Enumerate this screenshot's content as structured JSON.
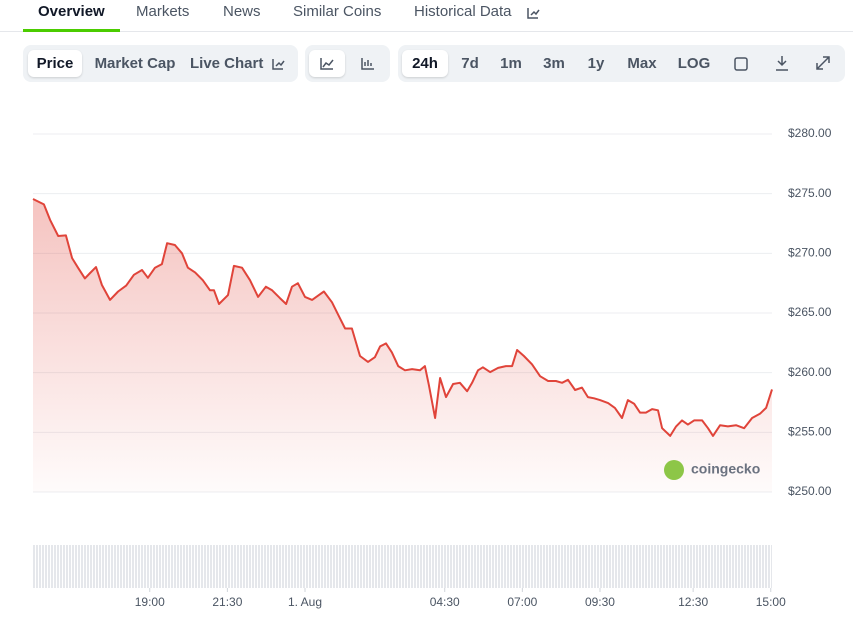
{
  "tabs": [
    "Overview",
    "Markets",
    "News",
    "Similar Coins",
    "Historical Data"
  ],
  "toolbar": {
    "views": [
      "Price",
      "Market Cap",
      "Live Chart"
    ],
    "ranges": [
      "24h",
      "7d",
      "1m",
      "3m",
      "1y",
      "Max",
      "LOG"
    ]
  },
  "watermark": "coingecko",
  "chart_data": {
    "type": "line",
    "color": "#e0443a",
    "fill": true,
    "grid": true,
    "x": [
      -8.76,
      -8.41,
      -8.21,
      -7.95,
      -7.7,
      -7.5,
      -7.31,
      -7.09,
      -6.92,
      -6.73,
      -6.54,
      -6.28,
      -6.02,
      -5.76,
      -5.51,
      -5.25,
      -5.06,
      -4.83,
      -4.61,
      -4.44,
      -4.19,
      -3.96,
      -3.77,
      -3.54,
      -3.29,
      -3.06,
      -2.93,
      -2.77,
      -2.48,
      -2.29,
      -2.03,
      -1.77,
      -1.51,
      -1.26,
      -1.06,
      -0.81,
      -0.61,
      -0.42,
      -0.23,
      0,
      0.23,
      0.42,
      0.61,
      0.87,
      1.06,
      1.29,
      1.51,
      1.77,
      2.03,
      2.25,
      2.42,
      2.61,
      2.8,
      3.0,
      3.22,
      3.45,
      3.7,
      3.86,
      3.99,
      4.19,
      4.35,
      4.54,
      4.77,
      4.99,
      5.22,
      5.38,
      5.57,
      5.73,
      5.96,
      6.22,
      6.47,
      6.67,
      6.83,
      7.05,
      7.31,
      7.57,
      7.83,
      8.08,
      8.28,
      8.47,
      8.7,
      8.92,
      9.11,
      9.31,
      9.5,
      9.76,
      9.98,
      10.21,
      10.4,
      10.6,
      10.79,
      10.98,
      11.18,
      11.37,
      11.5,
      11.76,
      11.95,
      12.14,
      12.33,
      12.53,
      12.79,
      12.98,
      13.14,
      13.37,
      13.62,
      13.88,
      14.14,
      14.4,
      14.65,
      14.85,
      15.04
    ],
    "values": [
      274.55,
      274.1,
      272.8,
      271.45,
      271.5,
      269.6,
      268.8,
      267.9,
      268.35,
      268.85,
      267.35,
      266.1,
      266.8,
      267.3,
      268.2,
      268.6,
      267.95,
      268.8,
      269.1,
      270.85,
      270.7,
      270.0,
      268.8,
      268.4,
      267.75,
      266.9,
      266.9,
      265.75,
      266.5,
      268.95,
      268.8,
      267.75,
      266.35,
      267.2,
      266.9,
      266.25,
      265.75,
      267.2,
      267.5,
      266.35,
      266.1,
      266.45,
      266.8,
      265.9,
      264.9,
      263.7,
      263.7,
      261.4,
      260.9,
      261.3,
      262.2,
      262.45,
      261.7,
      260.55,
      260.2,
      260.3,
      260.2,
      260.55,
      258.95,
      256.2,
      259.55,
      257.95,
      259.05,
      259.15,
      258.45,
      259.15,
      260.2,
      260.45,
      260.05,
      260.4,
      260.55,
      260.55,
      261.9,
      261.4,
      260.7,
      259.7,
      259.3,
      259.3,
      259.15,
      259.4,
      258.55,
      258.75,
      257.95,
      257.85,
      257.7,
      257.45,
      257.05,
      256.2,
      257.7,
      257.4,
      256.65,
      256.65,
      256.95,
      256.85,
      255.35,
      254.7,
      255.5,
      256.0,
      255.65,
      256.0,
      256.0,
      255.35,
      254.7,
      255.6,
      255.5,
      255.6,
      255.35,
      256.2,
      256.55,
      257.05,
      258.6
    ],
    "xlim": [
      -8.76,
      15.04
    ],
    "xticks": [
      {
        "value": -5,
        "label": "19:00"
      },
      {
        "value": -2.5,
        "label": "21:30"
      },
      {
        "value": 0,
        "label": "1. Aug"
      },
      {
        "value": 4.5,
        "label": "04:30"
      },
      {
        "value": 7,
        "label": "07:00"
      },
      {
        "value": 9.5,
        "label": "09:30"
      },
      {
        "value": 12.5,
        "label": "12:30"
      },
      {
        "value": 15,
        "label": "15:00"
      }
    ],
    "ylim": [
      250,
      280
    ],
    "yticks": [
      {
        "value": 250,
        "label": "$250.00"
      },
      {
        "value": 255,
        "label": "$255.00"
      },
      {
        "value": 260,
        "label": "$260.00"
      },
      {
        "value": 265,
        "label": "$265.00"
      },
      {
        "value": 270,
        "label": "$270.00"
      },
      {
        "value": 275,
        "label": "$275.00"
      },
      {
        "value": 280,
        "label": "$280.00"
      }
    ]
  }
}
